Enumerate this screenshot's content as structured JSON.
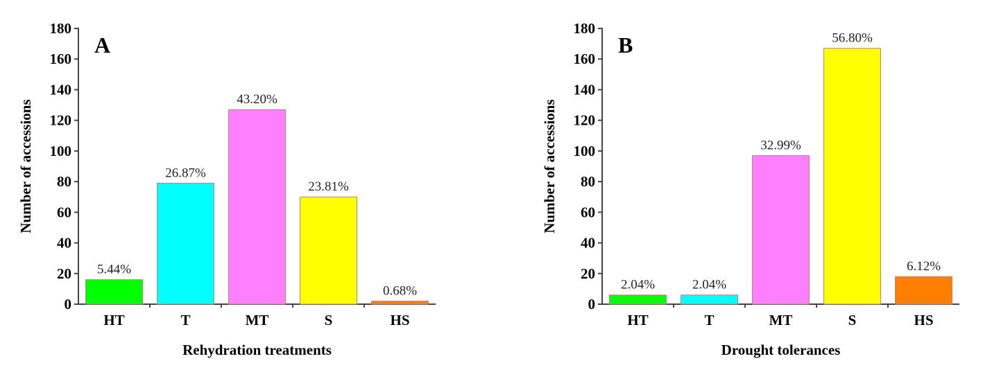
{
  "chart_data": [
    {
      "type": "bar",
      "panel_label": "A",
      "title": "",
      "xlabel": "Rehydration treatments",
      "ylabel": "Number of accessions",
      "categories": [
        "HT",
        "T",
        "MT",
        "S",
        "HS"
      ],
      "values": [
        16,
        79,
        127,
        70,
        2
      ],
      "data_labels": [
        "5.44%",
        "26.87%",
        "43.20%",
        "23.81%",
        "0.68%"
      ],
      "colors": [
        "#00ff00",
        "#00ffff",
        "#ff80ff",
        "#ffff00",
        "#ff8000"
      ],
      "ylim": [
        0,
        180
      ],
      "yticks": [
        0,
        20,
        40,
        60,
        80,
        100,
        120,
        140,
        160,
        180
      ],
      "grid": false
    },
    {
      "type": "bar",
      "panel_label": "B",
      "title": "",
      "xlabel": "Drought tolerances",
      "ylabel": "Number of accessions",
      "categories": [
        "HT",
        "T",
        "MT",
        "S",
        "HS"
      ],
      "values": [
        6,
        6,
        97,
        167,
        18
      ],
      "data_labels": [
        "2.04%",
        "2.04%",
        "32.99%",
        "56.80%",
        "6.12%"
      ],
      "colors": [
        "#00ff00",
        "#00ffff",
        "#ff80ff",
        "#ffff00",
        "#ff8000"
      ],
      "ylim": [
        0,
        180
      ],
      "yticks": [
        0,
        20,
        40,
        60,
        80,
        100,
        120,
        140,
        160,
        180
      ],
      "grid": false
    }
  ]
}
